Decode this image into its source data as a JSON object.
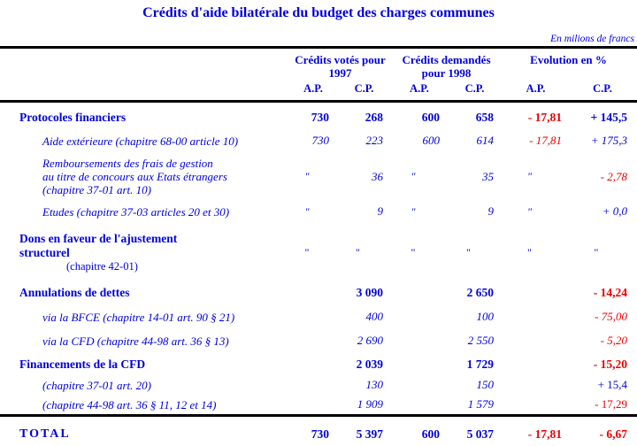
{
  "title": "Crédits d'aide bilatérale du budget des charges communes",
  "unit_note": "En milions de francs",
  "colors": {
    "text_blue": "#0000dd",
    "negative_red": "#ee0000",
    "rule_black": "#000000",
    "background": "#ffffff"
  },
  "header": {
    "groups": [
      {
        "lines": [
          "Crédits votés pour",
          "1997"
        ]
      },
      {
        "lines": [
          "Crédits demandés",
          "pour 1998"
        ]
      },
      {
        "lines": [
          "Evolution en %"
        ]
      }
    ],
    "subcolumns": [
      "A.P.",
      "C.P.",
      "A.P.",
      "C.P.",
      "A.P.",
      "C.P."
    ]
  },
  "rows": [
    {
      "type": "section",
      "label": [
        "Protocoles financiers"
      ],
      "values": [
        "730",
        "268",
        "600",
        "658",
        "- 17,81",
        "+ 145,5"
      ]
    },
    {
      "type": "sub",
      "label": [
        "Aide extérieure (chapitre 68-00 article 10)"
      ],
      "values": [
        "730",
        "223",
        "600",
        "614",
        "- 17,81",
        "+ 175,3"
      ]
    },
    {
      "type": "sub",
      "label": [
        "Remboursements des frais de gestion",
        "au titre de concours aux Etats étrangers",
        "(chapitre 37-01 art. 10)"
      ],
      "values": [
        "\"",
        "36",
        "\"",
        "35",
        "\"",
        "- 2,78"
      ]
    },
    {
      "type": "sub",
      "label": [
        "Etudes (chapitre 37-03 articles 20 et 30)"
      ],
      "values": [
        "\"",
        "9",
        "\"",
        "9",
        "\"",
        "+ 0,0"
      ]
    },
    {
      "type": "section",
      "label": [
        "Dons en faveur de l'ajustement",
        "structurel"
      ],
      "sublabel": "(chapitre 42-01)",
      "values": [
        "\"",
        "\"",
        "\"",
        "\"",
        "\"",
        "\""
      ]
    },
    {
      "type": "section",
      "label": [
        "Annulations de dettes"
      ],
      "values": [
        "",
        "3 090",
        "",
        "2 650",
        "",
        "- 14,24"
      ]
    },
    {
      "type": "sub",
      "label": [
        "via la BFCE (chapitre 14-01 art. 90 § 21)"
      ],
      "values": [
        "",
        "400",
        "",
        "100",
        "",
        "- 75,00"
      ]
    },
    {
      "type": "sub",
      "label": [
        "via la CFD (chapitre 44-98 art. 36 § 13)"
      ],
      "values": [
        "",
        "2 690",
        "",
        "2 550",
        "",
        "- 5,20"
      ]
    },
    {
      "type": "section",
      "label": [
        "Financements de la CFD"
      ],
      "values": [
        "",
        "2 039",
        "",
        "1 729",
        "",
        "- 15,20"
      ]
    },
    {
      "type": "sub",
      "upright_evol": true,
      "label": [
        "(chapitre 37-01 art. 20)"
      ],
      "values": [
        "",
        "130",
        "",
        "150",
        "",
        "+ 15,4"
      ]
    },
    {
      "type": "sub",
      "upright_evol": true,
      "label": [
        "(chapitre 44-98 art. 36 § 11, 12 et 14)"
      ],
      "values": [
        "",
        "1 909",
        "",
        "1 579",
        "",
        "- 17,29"
      ]
    },
    {
      "type": "total",
      "label": [
        "TOTAL"
      ],
      "values": [
        "730",
        "5 397",
        "600",
        "5 037",
        "- 17,81",
        "- 6,67"
      ]
    }
  ]
}
